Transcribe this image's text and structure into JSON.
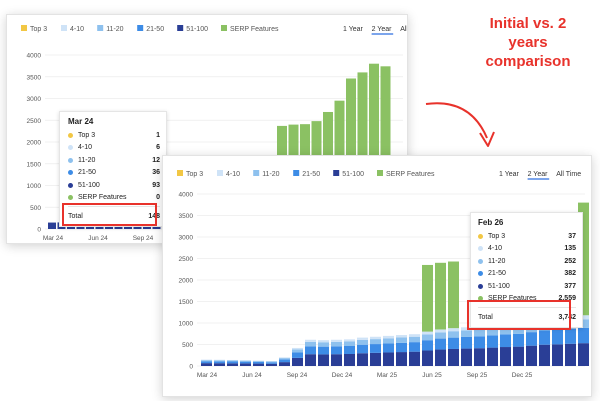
{
  "headline": [
    "Initial vs. 2 years",
    "comparison"
  ],
  "legend": [
    {
      "label": "Top 3",
      "color": "#f2c744"
    },
    {
      "label": "4-10",
      "color": "#cfe3f7"
    },
    {
      "label": "11-20",
      "color": "#8ec1ee"
    },
    {
      "label": "21-50",
      "color": "#3d8ce6"
    },
    {
      "label": "51-100",
      "color": "#2a3e96"
    },
    {
      "label": "SERP Features",
      "color": "#8bc163"
    }
  ],
  "range_buttons": [
    "1 Year",
    "2 Year",
    "All Time"
  ],
  "selected_range": "2 Year",
  "chart_data": [
    {
      "type": "bar",
      "stacked": true,
      "x_tick_labels": [
        "Mar 24",
        "Jun 24",
        "Sep 24"
      ],
      "ylim": [
        0,
        4000
      ],
      "yticks": [
        0,
        500,
        1000,
        1500,
        2000,
        2500,
        3000,
        3500,
        4000
      ],
      "grid": true,
      "visible_bar_count": 37,
      "serp_features_values": [
        2370,
        2400,
        2410,
        2480,
        2690,
        2950,
        3460,
        3600,
        3800,
        3740
      ],
      "first_bar_total": 148,
      "tooltip": {
        "title": "Mar 24",
        "rows": [
          {
            "label": "Top 3",
            "value": "1",
            "color": "#f2c744"
          },
          {
            "label": "4-10",
            "value": "6",
            "color": "#cfe3f7"
          },
          {
            "label": "11-20",
            "value": "12",
            "color": "#8ec1ee"
          },
          {
            "label": "21-50",
            "value": "36",
            "color": "#3d8ce6"
          },
          {
            "label": "51-100",
            "value": "93",
            "color": "#2a3e96"
          },
          {
            "label": "SERP Features",
            "value": "0",
            "color": "#8bc163"
          }
        ],
        "total_label": "Total",
        "total_value": "148"
      }
    },
    {
      "type": "bar",
      "stacked": true,
      "x_tick_labels": [
        "Mar 24",
        "Jun 24",
        "Sep 24",
        "Dec 24",
        "Mar 25",
        "Jun 25",
        "Sep 25",
        "Dec 25"
      ],
      "ylim": [
        0,
        4000
      ],
      "yticks": [
        0,
        500,
        1000,
        1500,
        2000,
        2500,
        3000,
        3500,
        4000
      ],
      "grid": true,
      "series_order": [
        "51-100",
        "21-50",
        "11-20",
        "4-10",
        "Top 3",
        "SERP Features"
      ],
      "stacks": [
        [
          148,
          0
        ],
        [
          145,
          0
        ],
        [
          140,
          0
        ],
        [
          135,
          0
        ],
        [
          125,
          0
        ],
        [
          115,
          0
        ],
        [
          200,
          0
        ],
        [
          420,
          0
        ],
        [
          610,
          0
        ],
        [
          600,
          0
        ],
        [
          610,
          0
        ],
        [
          620,
          0
        ],
        [
          660,
          0
        ],
        [
          680,
          0
        ],
        [
          700,
          0
        ],
        [
          720,
          0
        ],
        [
          740,
          0
        ],
        [
          800,
          1550
        ],
        [
          850,
          1550
        ],
        [
          880,
          1550
        ],
        [
          900,
          0
        ],
        [
          920,
          0
        ],
        [
          950,
          1200
        ],
        [
          980,
          1300
        ],
        [
          1000,
          1250
        ],
        [
          1050,
          1600
        ],
        [
          1100,
          1700
        ],
        [
          1120,
          2000
        ],
        [
          1150,
          2200
        ],
        [
          1180,
          2620
        ]
      ],
      "tooltip": {
        "title": "Feb 26",
        "rows": [
          {
            "label": "Top 3",
            "value": "37",
            "color": "#f2c744"
          },
          {
            "label": "4-10",
            "value": "135",
            "color": "#cfe3f7"
          },
          {
            "label": "11-20",
            "value": "252",
            "color": "#8ec1ee"
          },
          {
            "label": "21-50",
            "value": "382",
            "color": "#3d8ce6"
          },
          {
            "label": "51-100",
            "value": "377",
            "color": "#2a3e96"
          },
          {
            "label": "SERP Features",
            "value": "2,559",
            "color": "#8bc163"
          }
        ],
        "total_label": "Total",
        "total_value": "3,742"
      }
    }
  ]
}
